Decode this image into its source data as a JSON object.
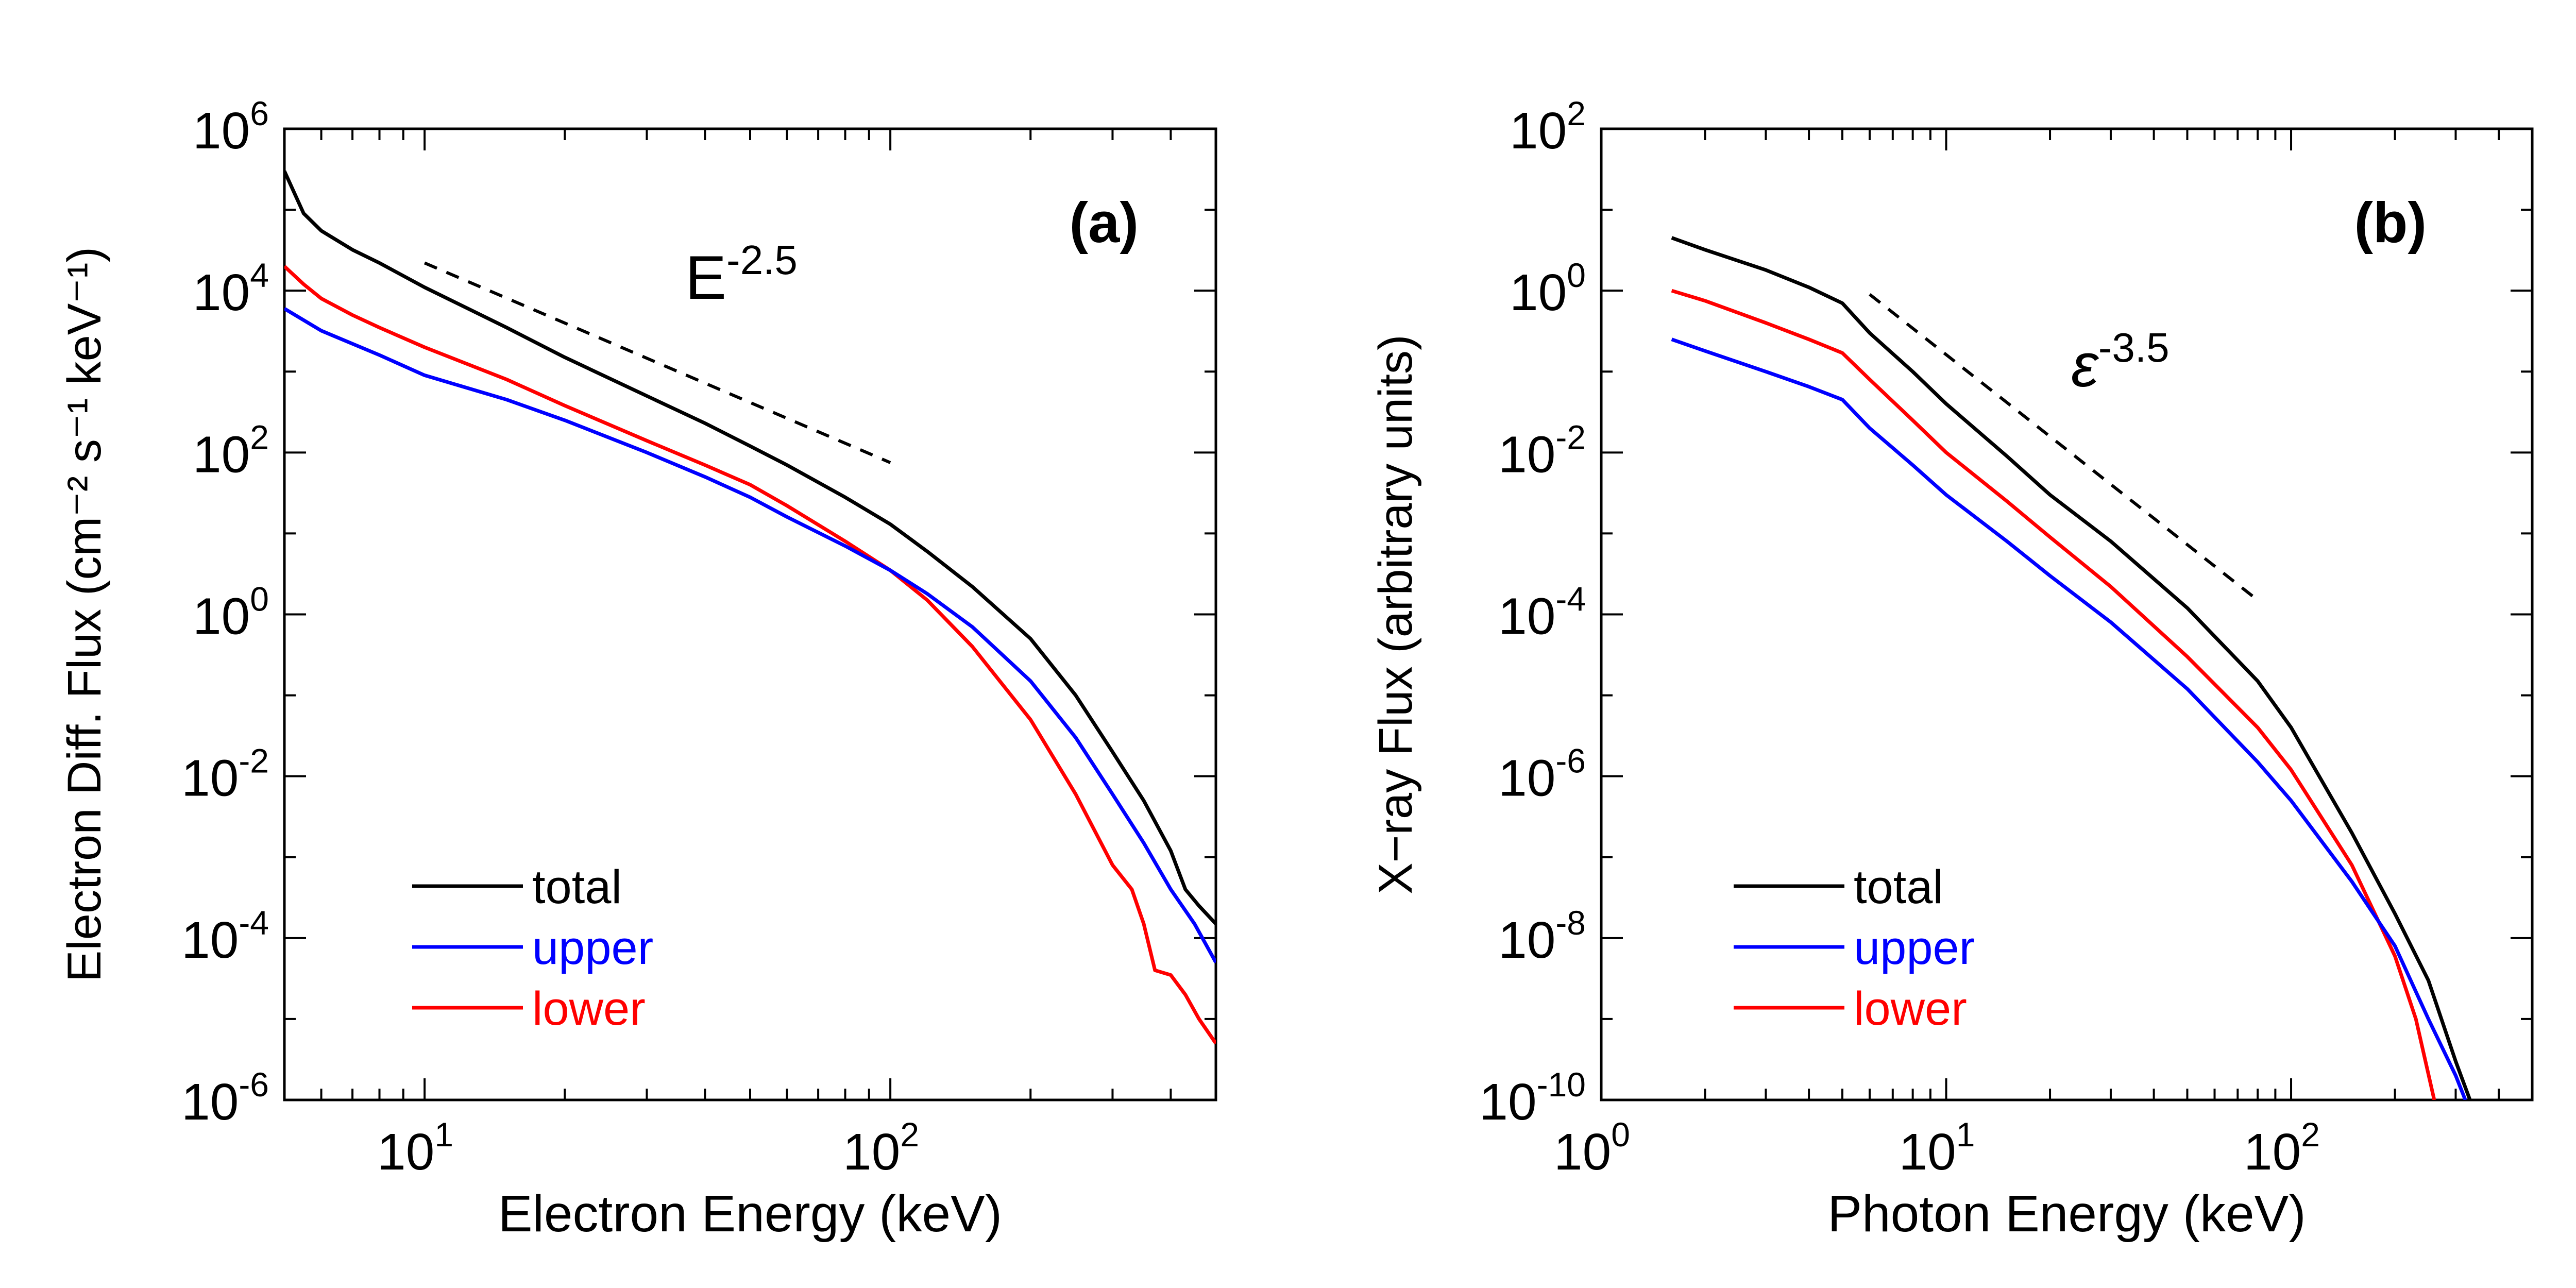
{
  "chart_data": [
    {
      "type": "line",
      "panel_label": "(a)",
      "xlabel": "Electron Energy (keV)",
      "ylabel": "Electron Diff. Flux (cm⁻² s⁻¹ keV⁻¹)",
      "x_scale": "log",
      "y_scale": "log",
      "xlim": [
        5,
        500
      ],
      "ylim": [
        1e-06,
        1000000.0
      ],
      "x_ticks": [
        {
          "base": "10",
          "exp": "1",
          "v": 10
        },
        {
          "base": "10",
          "exp": "2",
          "v": 100
        }
      ],
      "y_ticks": [
        {
          "base": "10",
          "exp": "-6",
          "v": 1e-06
        },
        {
          "base": "10",
          "exp": "-4",
          "v": 0.0001
        },
        {
          "base": "10",
          "exp": "-2",
          "v": 0.01
        },
        {
          "base": "10",
          "exp": "0",
          "v": 1
        },
        {
          "base": "10",
          "exp": "2",
          "v": 100
        },
        {
          "base": "10",
          "exp": "4",
          "v": 10000.0
        },
        {
          "base": "10",
          "exp": "6",
          "v": 1000000.0
        }
      ],
      "reference_line": {
        "label_base": "E",
        "label_exp": "-2.5",
        "x": [
          10,
          100
        ],
        "y": [
          22000,
          75
        ]
      },
      "legend": {
        "placement": "bottom-left"
      },
      "series": [
        {
          "name": "total",
          "color": "#000000",
          "x": [
            5,
            5.5,
            6,
            7,
            8,
            10,
            15,
            20,
            30,
            40,
            50,
            60,
            80,
            100,
            120,
            150,
            200,
            250,
            300,
            350,
            400,
            430,
            460,
            500
          ],
          "y": [
            300000,
            90000,
            55000,
            32000,
            22000,
            11000,
            3500,
            1500,
            500,
            230,
            120,
            70,
            28,
            13,
            6,
            2.2,
            0.5,
            0.1,
            0.02,
            0.005,
            0.0012,
            0.0004,
            0.00025,
            0.00015
          ]
        },
        {
          "name": "upper",
          "color": "#0000ff",
          "x": [
            5,
            6,
            8,
            10,
            15,
            20,
            30,
            40,
            50,
            60,
            80,
            100,
            120,
            150,
            200,
            250,
            300,
            350,
            400,
            450,
            500
          ],
          "y": [
            6000,
            3200,
            1600,
            900,
            450,
            250,
            100,
            50,
            28,
            16,
            7,
            3.5,
            1.8,
            0.7,
            0.15,
            0.03,
            0.006,
            0.0015,
            0.0004,
            0.00015,
            5e-05
          ]
        },
        {
          "name": "lower",
          "color": "#ff0000",
          "x": [
            5,
            5.5,
            6,
            7,
            8,
            10,
            15,
            20,
            30,
            40,
            50,
            60,
            80,
            100,
            120,
            150,
            200,
            250,
            300,
            330,
            350,
            370,
            400,
            430,
            460,
            500
          ],
          "y": [
            20000,
            12000,
            8000,
            5000,
            3500,
            2000,
            800,
            380,
            140,
            70,
            40,
            22,
            8,
            3.5,
            1.5,
            0.4,
            0.05,
            0.006,
            0.0008,
            0.0004,
            0.00015,
            4e-05,
            3.5e-05,
            2e-05,
            1e-05,
            5e-06
          ]
        }
      ]
    },
    {
      "type": "line",
      "panel_label": "(b)",
      "xlabel": "Photon Energy (keV)",
      "ylabel": "X−ray Flux (arbitrary units)",
      "x_scale": "log",
      "y_scale": "log",
      "xlim": [
        1,
        500
      ],
      "ylim": [
        1e-10,
        100
      ],
      "x_ticks": [
        {
          "base": "10",
          "exp": "0",
          "v": 1
        },
        {
          "base": "10",
          "exp": "1",
          "v": 10
        },
        {
          "base": "10",
          "exp": "2",
          "v": 100
        }
      ],
      "y_ticks": [
        {
          "base": "10",
          "exp": "-10",
          "v": 1e-10
        },
        {
          "base": "10",
          "exp": "-8",
          "v": 1e-08
        },
        {
          "base": "10",
          "exp": "-6",
          "v": 1e-06
        },
        {
          "base": "10",
          "exp": "-4",
          "v": 0.0001
        },
        {
          "base": "10",
          "exp": "-2",
          "v": 0.01
        },
        {
          "base": "10",
          "exp": "0",
          "v": 1
        },
        {
          "base": "10",
          "exp": "2",
          "v": 100
        }
      ],
      "reference_line": {
        "label_base": "ε",
        "label_exp": "-3.5",
        "x": [
          6,
          80
        ],
        "y": [
          0.9,
          0.00015
        ]
      },
      "legend": {
        "placement": "bottom-left"
      },
      "series": [
        {
          "name": "total",
          "color": "#000000",
          "x": [
            1.6,
            2,
            3,
            4,
            5,
            6,
            8,
            10,
            15,
            20,
            30,
            50,
            80,
            100,
            150,
            200,
            250,
            300,
            330
          ],
          "y": [
            4.5,
            3.2,
            1.8,
            1.1,
            0.7,
            0.3,
            0.1,
            0.04,
            0.009,
            0.003,
            0.0008,
            0.00012,
            1.5e-05,
            4e-06,
            2e-07,
            2e-08,
            3e-09,
            3e-10,
            1e-10
          ]
        },
        {
          "name": "upper",
          "color": "#0000ff",
          "x": [
            1.6,
            2,
            3,
            4,
            5,
            6,
            8,
            10,
            15,
            20,
            30,
            50,
            80,
            100,
            150,
            200,
            250,
            300,
            320
          ],
          "y": [
            0.25,
            0.18,
            0.1,
            0.065,
            0.045,
            0.02,
            0.007,
            0.003,
            0.0008,
            0.0003,
            8e-05,
            1.2e-05,
            1.5e-06,
            5e-07,
            5e-08,
            8e-09,
            1e-09,
            2e-10,
            1e-10
          ]
        },
        {
          "name": "lower",
          "color": "#ff0000",
          "x": [
            1.6,
            2,
            3,
            4,
            5,
            6,
            8,
            10,
            15,
            20,
            30,
            50,
            80,
            100,
            150,
            200,
            230,
            260
          ],
          "y": [
            1.0,
            0.75,
            0.4,
            0.25,
            0.17,
            0.08,
            0.025,
            0.01,
            0.0025,
            0.0009,
            0.00022,
            3e-05,
            4e-06,
            1.2e-06,
            8e-08,
            6e-09,
            1e-09,
            1e-10
          ]
        }
      ]
    }
  ]
}
